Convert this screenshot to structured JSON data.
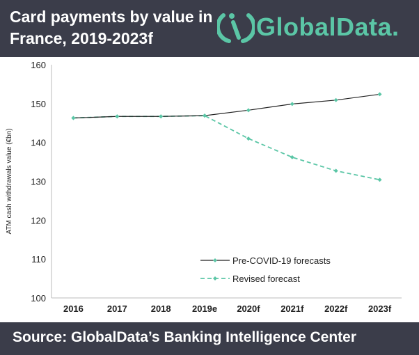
{
  "header": {
    "title": "Card payments by value in France, 2019-2023f",
    "logo_text": "GlobalData."
  },
  "footer": {
    "source": "Source:  GlobalData’s Banking Intelligence Center"
  },
  "colors": {
    "header_bg": "#3b3d4a",
    "accent": "#5bc6a6",
    "series_pre": "#222222",
    "series_revised": "#5bc6a6"
  },
  "chart_data": {
    "type": "line",
    "ylabel": "ATM cash withdrawals value (€bn)",
    "xlabel": "",
    "categories": [
      "2016",
      "2017",
      "2018",
      "2019e",
      "2020f",
      "2021f",
      "2022f",
      "2023f"
    ],
    "ylim": [
      100,
      160
    ],
    "yticks": [
      100,
      110,
      120,
      130,
      140,
      150,
      160
    ],
    "grid": false,
    "legend_position": "bottom-right",
    "series": [
      {
        "name": "Pre-COVID-19 forecasts",
        "style": "solid",
        "values": [
          146.3,
          146.7,
          146.7,
          146.9,
          148.3,
          149.9,
          150.9,
          152.4
        ]
      },
      {
        "name": "Revised forecast",
        "style": "dashed",
        "values": [
          146.3,
          146.7,
          146.7,
          146.9,
          141.0,
          136.2,
          132.7,
          130.4
        ]
      }
    ]
  }
}
